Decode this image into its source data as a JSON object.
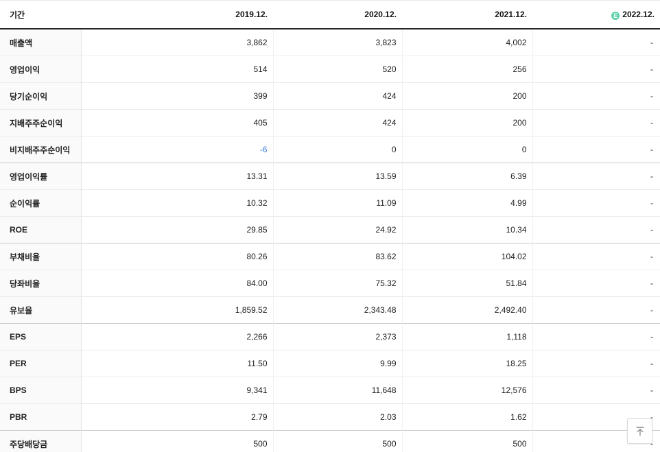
{
  "colors": {
    "negative_value": "#3b79d8",
    "estimate_badge_bg": "#5cd3a5",
    "header_border": "#26262a"
  },
  "table": {
    "header": {
      "label": "기간",
      "estimate_badge": "E",
      "columns": [
        {
          "label": "2019.12.",
          "estimate": false
        },
        {
          "label": "2020.12.",
          "estimate": false
        },
        {
          "label": "2021.12.",
          "estimate": false
        },
        {
          "label": "2022.12.",
          "estimate": true
        }
      ]
    },
    "rows": [
      {
        "label": "매출액",
        "values": [
          "3,862",
          "3,823",
          "4,002",
          "-"
        ],
        "group_start": false
      },
      {
        "label": "영업이익",
        "values": [
          "514",
          "520",
          "256",
          "-"
        ],
        "group_start": false
      },
      {
        "label": "당기순이익",
        "values": [
          "399",
          "424",
          "200",
          "-"
        ],
        "group_start": false
      },
      {
        "label": "지배주주순이익",
        "values": [
          "405",
          "424",
          "200",
          "-"
        ],
        "group_start": false
      },
      {
        "label": "비지배주주순이익",
        "values": [
          "-6",
          "0",
          "0",
          "-"
        ],
        "group_start": false
      },
      {
        "label": "영업이익률",
        "values": [
          "13.31",
          "13.59",
          "6.39",
          "-"
        ],
        "group_start": true
      },
      {
        "label": "순이익률",
        "values": [
          "10.32",
          "11.09",
          "4.99",
          "-"
        ],
        "group_start": false
      },
      {
        "label": "ROE",
        "values": [
          "29.85",
          "24.92",
          "10.34",
          "-"
        ],
        "group_start": false
      },
      {
        "label": "부채비율",
        "values": [
          "80.26",
          "83.62",
          "104.02",
          "-"
        ],
        "group_start": true
      },
      {
        "label": "당좌비율",
        "values": [
          "84.00",
          "75.32",
          "51.84",
          "-"
        ],
        "group_start": false
      },
      {
        "label": "유보율",
        "values": [
          "1,859.52",
          "2,343.48",
          "2,492.40",
          "-"
        ],
        "group_start": false
      },
      {
        "label": "EPS",
        "values": [
          "2,266",
          "2,373",
          "1,118",
          "-"
        ],
        "group_start": true
      },
      {
        "label": "PER",
        "values": [
          "11.50",
          "9.99",
          "18.25",
          "-"
        ],
        "group_start": false
      },
      {
        "label": "BPS",
        "values": [
          "9,341",
          "11,648",
          "12,576",
          "-"
        ],
        "group_start": false
      },
      {
        "label": "PBR",
        "values": [
          "2.79",
          "2.03",
          "1.62",
          "-"
        ],
        "group_start": false
      },
      {
        "label": "주당배당금",
        "values": [
          "500",
          "500",
          "500",
          "-"
        ],
        "group_start": true
      }
    ]
  },
  "scroll_top_button": {
    "icon": "arrow-up-to-top"
  }
}
